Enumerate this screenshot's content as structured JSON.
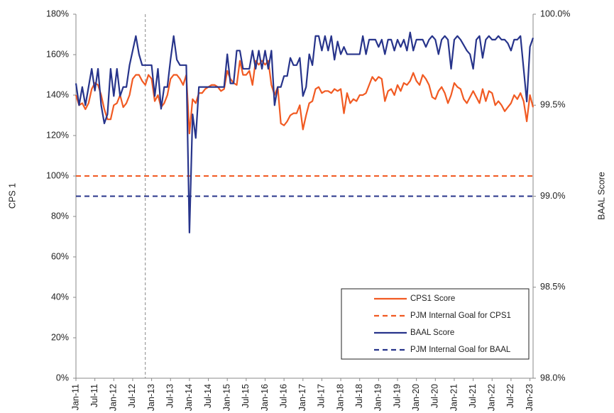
{
  "chart_data": {
    "type": "line",
    "categories": [
      "Jan-11",
      null,
      null,
      null,
      null,
      null,
      "Jul-11",
      null,
      null,
      null,
      null,
      null,
      "Jan-12",
      null,
      null,
      null,
      null,
      null,
      "Jul-12",
      null,
      null,
      null,
      null,
      null,
      "Jan-13",
      null,
      null,
      null,
      null,
      null,
      "Jul-13",
      null,
      null,
      null,
      null,
      null,
      "Jan-14",
      null,
      null,
      null,
      null,
      null,
      "Jul-14",
      null,
      null,
      null,
      null,
      null,
      "Jan-15",
      null,
      null,
      null,
      null,
      null,
      "Jul-15",
      null,
      null,
      null,
      null,
      null,
      "Jan-16",
      null,
      null,
      null,
      null,
      null,
      "Jul-16",
      null,
      null,
      null,
      null,
      null,
      "Jan-17",
      null,
      null,
      null,
      null,
      null,
      "Jul-17",
      null,
      null,
      null,
      null,
      null,
      "Jan-18",
      null,
      null,
      null,
      null,
      null,
      "Jul-18",
      null,
      null,
      null,
      null,
      null,
      "Jan-19",
      null,
      null,
      null,
      null,
      null,
      "Jul-19",
      null,
      null,
      null,
      null,
      null,
      "Jan-20",
      null,
      null,
      null,
      null,
      null,
      "Jul-20",
      null,
      null,
      null,
      null,
      null,
      "Jan-21",
      null,
      null,
      null,
      null,
      null,
      "Jul-21",
      null,
      null,
      null,
      null,
      null,
      "Jan-22",
      null,
      null,
      null,
      null,
      null,
      "Jul-22",
      null,
      null,
      null,
      null,
      null,
      "Jan-23",
      null
    ],
    "series": [
      {
        "name": "CPS1 Score",
        "color": "#f15a22",
        "axis": "y",
        "values": [
          140,
          135,
          136,
          133,
          136,
          143,
          146,
          145,
          140,
          133,
          128,
          128,
          135,
          136,
          140,
          134,
          136,
          140,
          148,
          150,
          150,
          147,
          145,
          150,
          148,
          137,
          140,
          134,
          136,
          140,
          148,
          150,
          150,
          148,
          145,
          150,
          121,
          138,
          136,
          141,
          141,
          143,
          144,
          145,
          145,
          144,
          142,
          143,
          152,
          148,
          146,
          145,
          157,
          150,
          150,
          152,
          145,
          157,
          155,
          157,
          155,
          157,
          145,
          140,
          144,
          126,
          125,
          127,
          130,
          131,
          131,
          135,
          123,
          130,
          136,
          137,
          143,
          144,
          141,
          142,
          142,
          141,
          143,
          142,
          143,
          131,
          141,
          136,
          138,
          137,
          140,
          140,
          141,
          145,
          149,
          147,
          149,
          148,
          137,
          142,
          143,
          140,
          145,
          142,
          146,
          145,
          147,
          151,
          147,
          145,
          150,
          148,
          145,
          139,
          138,
          142,
          144,
          141,
          136,
          140,
          146,
          144,
          143,
          138,
          136,
          139,
          142,
          139,
          136,
          143,
          137,
          142,
          141,
          135,
          137,
          135,
          132,
          134,
          136,
          140,
          138,
          141,
          137,
          127,
          140,
          134
        ]
      },
      {
        "name": "BAAL Score",
        "color": "#27348b",
        "axis": "y2",
        "values": [
          99.62,
          99.5,
          99.6,
          99.5,
          99.6,
          99.7,
          99.58,
          99.7,
          99.5,
          99.4,
          99.45,
          99.7,
          99.55,
          99.7,
          99.55,
          99.6,
          99.6,
          99.72,
          99.8,
          99.88,
          99.78,
          99.72,
          99.72,
          99.72,
          99.72,
          99.55,
          99.7,
          99.48,
          99.6,
          99.6,
          99.75,
          99.88,
          99.75,
          99.72,
          99.72,
          99.72,
          98.8,
          99.45,
          99.32,
          99.6,
          99.6,
          99.6,
          99.6,
          99.6,
          99.6,
          99.6,
          99.6,
          99.6,
          99.78,
          99.62,
          99.62,
          99.8,
          99.8,
          99.7,
          99.7,
          99.7,
          99.8,
          99.7,
          99.8,
          99.7,
          99.8,
          99.7,
          99.8,
          99.5,
          99.6,
          99.6,
          99.66,
          99.66,
          99.76,
          99.72,
          99.72,
          99.76,
          99.55,
          99.6,
          99.78,
          99.72,
          99.88,
          99.88,
          99.8,
          99.88,
          99.8,
          99.88,
          99.75,
          99.85,
          99.78,
          99.82,
          99.78,
          99.78,
          99.78,
          99.78,
          99.78,
          99.88,
          99.78,
          99.86,
          99.86,
          99.86,
          99.82,
          99.86,
          99.78,
          99.86,
          99.86,
          99.8,
          99.86,
          99.82,
          99.86,
          99.8,
          99.9,
          99.8,
          99.86,
          99.86,
          99.86,
          99.82,
          99.86,
          99.88,
          99.86,
          99.78,
          99.86,
          99.88,
          99.86,
          99.7,
          99.86,
          99.88,
          99.86,
          99.83,
          99.8,
          99.78,
          99.7,
          99.86,
          99.88,
          99.76,
          99.86,
          99.88,
          99.86,
          99.86,
          99.88,
          99.86,
          99.86,
          99.84,
          99.8,
          99.86,
          99.86,
          99.88,
          99.7,
          99.52,
          99.82,
          99.87
        ]
      }
    ],
    "reference_lines": [
      {
        "name": "PJM Internal Goal for CPS1",
        "value": 100,
        "axis": "y",
        "color": "#f15a22"
      },
      {
        "name": "PJM Internal Goal for BAAL",
        "value": 99.0,
        "axis": "y2",
        "color": "#27348b"
      }
    ],
    "vline_index": 22,
    "ylabel": "CPS 1",
    "y2label": "BAAL Score",
    "ylim": [
      0,
      180
    ],
    "yticks": [
      {
        "value": 0,
        "label": "0%"
      },
      {
        "value": 20,
        "label": "20%"
      },
      {
        "value": 40,
        "label": "40%"
      },
      {
        "value": 60,
        "label": "60%"
      },
      {
        "value": 80,
        "label": "80%"
      },
      {
        "value": 100,
        "label": "100%"
      },
      {
        "value": 120,
        "label": "120%"
      },
      {
        "value": 140,
        "label": "140%"
      },
      {
        "value": 160,
        "label": "160%"
      },
      {
        "value": 180,
        "label": "180%"
      }
    ],
    "y2lim": [
      98.0,
      100.0
    ],
    "y2ticks": [
      {
        "value": 98.0,
        "label": "98.0%"
      },
      {
        "value": 98.5,
        "label": "98.5%"
      },
      {
        "value": 99.0,
        "label": "99.0%"
      },
      {
        "value": 99.5,
        "label": "99.5%"
      },
      {
        "value": 100.0,
        "label": "100.0%"
      }
    ],
    "legend": "lower right"
  }
}
